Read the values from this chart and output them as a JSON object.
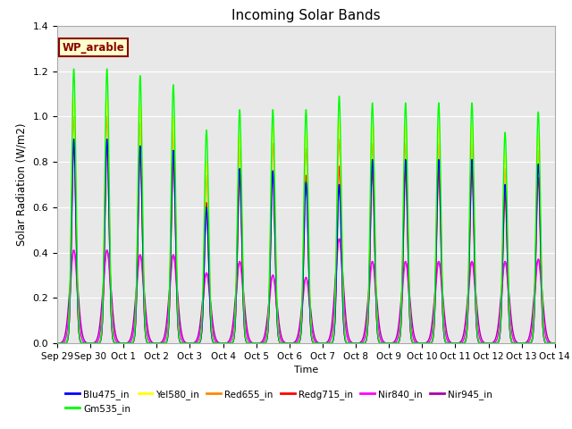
{
  "title": "Incoming Solar Bands",
  "xlabel": "Time",
  "ylabel": "Solar Radiation (W/m2)",
  "ylim": [
    0,
    1.4
  ],
  "yticks": [
    0.0,
    0.2,
    0.4,
    0.6,
    0.8,
    1.0,
    1.2,
    1.4
  ],
  "plot_bg_color": "#e8e8e8",
  "grid_color": "white",
  "annotation_text": "WP_arable",
  "annotation_color": "#8B0000",
  "annotation_bg": "#ffffcc",
  "series": [
    {
      "name": "Blu475_in",
      "color": "#0000ff",
      "lw": 1.0,
      "sigma": 0.065
    },
    {
      "name": "Gm535_in",
      "color": "#00ff00",
      "lw": 1.0,
      "sigma": 0.065
    },
    {
      "name": "Yel580_in",
      "color": "#ffff00",
      "lw": 1.0,
      "sigma": 0.065
    },
    {
      "name": "Red655_in",
      "color": "#ff8800",
      "lw": 1.0,
      "sigma": 0.065
    },
    {
      "name": "Redg715_in",
      "color": "#ff0000",
      "lw": 1.0,
      "sigma": 0.065
    },
    {
      "name": "Nir840_in",
      "color": "#ff00ff",
      "lw": 1.0,
      "sigma": 0.1
    },
    {
      "name": "Nir945_in",
      "color": "#aa00aa",
      "lw": 1.0,
      "sigma": 0.12
    }
  ],
  "day_peaks": {
    "Sep29": {
      "Blu475_in": 0.9,
      "Gm535_in": 1.21,
      "Yel580_in": 1.08,
      "Red655_in": 1.0,
      "Redg715_in": 0.88,
      "Nir840_in": 0.41,
      "Nir945_in": 0.41
    },
    "Sep30": {
      "Blu475_in": 0.9,
      "Gm535_in": 1.21,
      "Yel580_in": 1.08,
      "Red655_in": 1.0,
      "Redg715_in": 0.88,
      "Nir840_in": 0.41,
      "Nir945_in": 0.41
    },
    "Oct1": {
      "Blu475_in": 0.87,
      "Gm535_in": 1.18,
      "Yel580_in": 1.05,
      "Red655_in": 0.97,
      "Redg715_in": 0.85,
      "Nir840_in": 0.39,
      "Nir945_in": 0.39
    },
    "Oct2": {
      "Blu475_in": 0.85,
      "Gm535_in": 1.14,
      "Yel580_in": 1.0,
      "Red655_in": 0.94,
      "Redg715_in": 0.82,
      "Nir840_in": 0.39,
      "Nir945_in": 0.39
    },
    "Oct3": {
      "Blu475_in": 0.6,
      "Gm535_in": 0.94,
      "Yel580_in": 0.8,
      "Red655_in": 0.74,
      "Redg715_in": 0.62,
      "Nir840_in": 0.31,
      "Nir945_in": 0.31
    },
    "Oct4": {
      "Blu475_in": 0.77,
      "Gm535_in": 1.03,
      "Yel580_in": 0.92,
      "Red655_in": 0.86,
      "Redg715_in": 0.74,
      "Nir840_in": 0.36,
      "Nir945_in": 0.36
    },
    "Oct5": {
      "Blu475_in": 0.76,
      "Gm535_in": 1.03,
      "Yel580_in": 0.96,
      "Red655_in": 0.88,
      "Redg715_in": 0.76,
      "Nir840_in": 0.3,
      "Nir945_in": 0.3
    },
    "Oct6": {
      "Blu475_in": 0.71,
      "Gm535_in": 1.03,
      "Yel580_in": 0.93,
      "Red655_in": 0.86,
      "Redg715_in": 0.74,
      "Nir840_in": 0.29,
      "Nir945_in": 0.29
    },
    "Oct7": {
      "Blu475_in": 0.7,
      "Gm535_in": 1.09,
      "Yel580_in": 0.98,
      "Red655_in": 0.9,
      "Redg715_in": 0.78,
      "Nir840_in": 0.46,
      "Nir945_in": 0.46
    },
    "Oct8": {
      "Blu475_in": 0.81,
      "Gm535_in": 1.06,
      "Yel580_in": 0.96,
      "Red655_in": 0.88,
      "Redg715_in": 0.76,
      "Nir840_in": 0.36,
      "Nir945_in": 0.36
    },
    "Oct9": {
      "Blu475_in": 0.81,
      "Gm535_in": 1.06,
      "Yel580_in": 0.96,
      "Red655_in": 0.88,
      "Redg715_in": 0.76,
      "Nir840_in": 0.36,
      "Nir945_in": 0.36
    },
    "Oct10": {
      "Blu475_in": 0.81,
      "Gm535_in": 1.06,
      "Yel580_in": 0.96,
      "Red655_in": 0.88,
      "Redg715_in": 0.76,
      "Nir840_in": 0.36,
      "Nir945_in": 0.36
    },
    "Oct11": {
      "Blu475_in": 0.81,
      "Gm535_in": 1.06,
      "Yel580_in": 0.96,
      "Red655_in": 0.88,
      "Redg715_in": 0.76,
      "Nir840_in": 0.36,
      "Nir945_in": 0.36
    },
    "Oct12": {
      "Blu475_in": 0.7,
      "Gm535_in": 0.93,
      "Yel580_in": 0.84,
      "Red655_in": 0.77,
      "Redg715_in": 0.66,
      "Nir840_in": 0.36,
      "Nir945_in": 0.36
    },
    "Oct13": {
      "Blu475_in": 0.79,
      "Gm535_in": 1.02,
      "Yel580_in": 0.92,
      "Red655_in": 0.85,
      "Redg715_in": 0.73,
      "Nir840_in": 0.37,
      "Nir945_in": 0.37
    }
  },
  "xtick_labels": [
    "Sep 29",
    "Sep 30",
    "Oct 1",
    "Oct 2",
    "Oct 3",
    "Oct 4",
    "Oct 5",
    "Oct 6",
    "Oct 7",
    "Oct 8",
    "Oct 9",
    "Oct 10",
    "Oct 11",
    "Oct 12",
    "Oct 13",
    "Oct 14"
  ],
  "xtick_positions": [
    0,
    1,
    2,
    3,
    4,
    5,
    6,
    7,
    8,
    9,
    10,
    11,
    12,
    13,
    14,
    15
  ],
  "legend_order": [
    "Blu475_in",
    "Gm535_in",
    "Yel580_in",
    "Red655_in",
    "Redg715_in",
    "Nir840_in",
    "Nir945_in"
  ]
}
